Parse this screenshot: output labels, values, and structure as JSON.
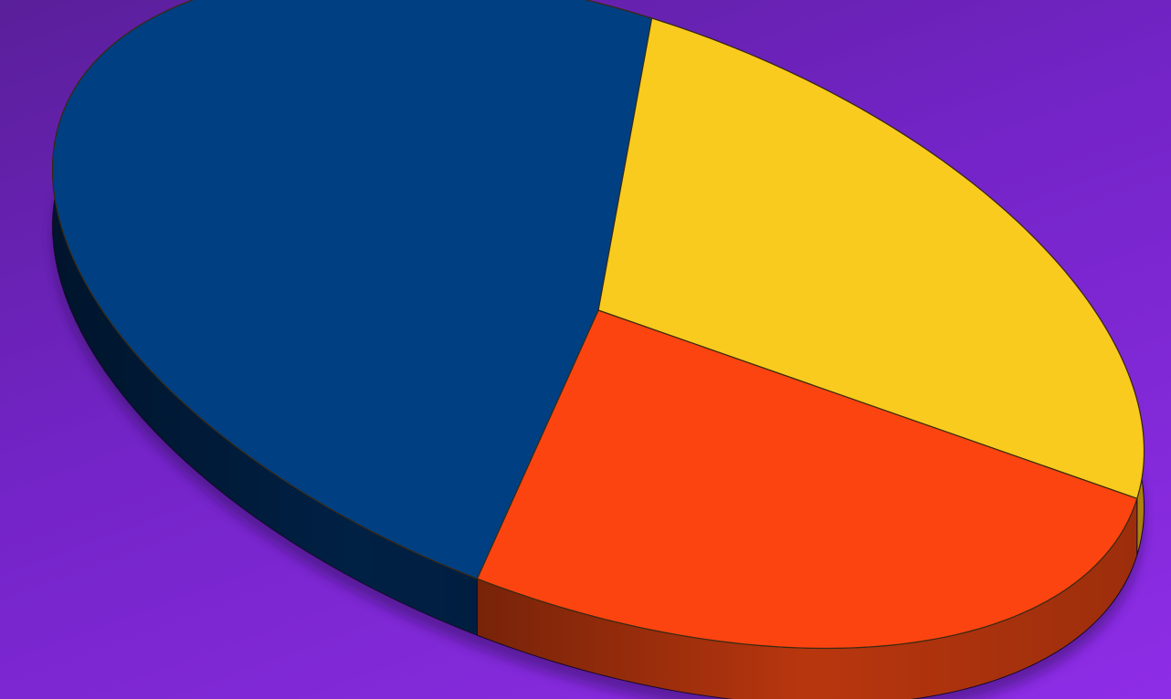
{
  "colors": {
    "background_top": "#5a1f9a",
    "background_bottom": "#8e2de6"
  },
  "chart_data": {
    "type": "pie",
    "style": "3d-tilted",
    "title": "",
    "legend": "none",
    "data_labels": "none",
    "slices": [
      {
        "value": 26,
        "color": "#f8cb1e",
        "side_color": "#c99a10"
      },
      {
        "value": 26,
        "color": "#fb4410",
        "side_color": "#b8360e"
      },
      {
        "value": 48,
        "color": "#003f81",
        "side_color": "#002044"
      }
    ]
  }
}
